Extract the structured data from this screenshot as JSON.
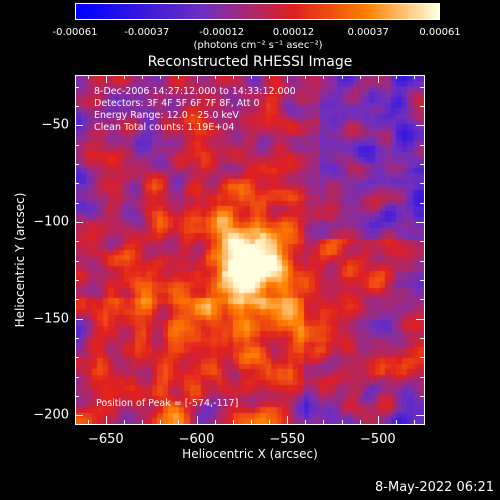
{
  "colorbar": {
    "tick_labels": [
      "-0.00061",
      "-0.00037",
      "-0.00012",
      "0.00012",
      "0.00037",
      "0.00061"
    ],
    "units": "(photons cm⁻² s⁻¹ asec⁻²)"
  },
  "plot": {
    "title": "Reconstructed RHESSI Image",
    "info_lines": [
      "8-Dec-2006 14:27:12.000 to 14:33:12.000",
      "Detectors: 3F 4F 5F 6F 7F 8F, Att 0",
      "Energy Range: 12.0 - 25.0 keV",
      "Clean     Total counts: 1.19E+04"
    ],
    "peak_text": "Position of Peak = [-574,-117]",
    "xlabel": "Heliocentric X (arcsec)",
    "ylabel": "Heliocentric Y (arcsec)"
  },
  "footer": {
    "date": "8-May-2022 06:21"
  },
  "chart_data": {
    "type": "heatmap",
    "title": "Reconstructed RHESSI Image",
    "xlabel": "Heliocentric X (arcsec)",
    "ylabel": "Heliocentric Y (arcsec)",
    "xlim": [
      -667,
      -474
    ],
    "ylim": [
      -205,
      -24
    ],
    "xticks": [
      -650,
      -600,
      -550,
      -500
    ],
    "yticks": [
      -50,
      -100,
      -150,
      -200
    ],
    "colorbar_range": [
      -0.00061,
      0.00061
    ],
    "colorbar_ticks": [
      -0.00061,
      -0.00037,
      -0.00012,
      0.00012,
      0.00037,
      0.00061
    ],
    "colormap": [
      "#0000ff",
      "#7030c0",
      "#e02020",
      "#ff8000",
      "#ffffe0"
    ],
    "peak_position": [
      -574,
      -117
    ],
    "grid": false
  }
}
